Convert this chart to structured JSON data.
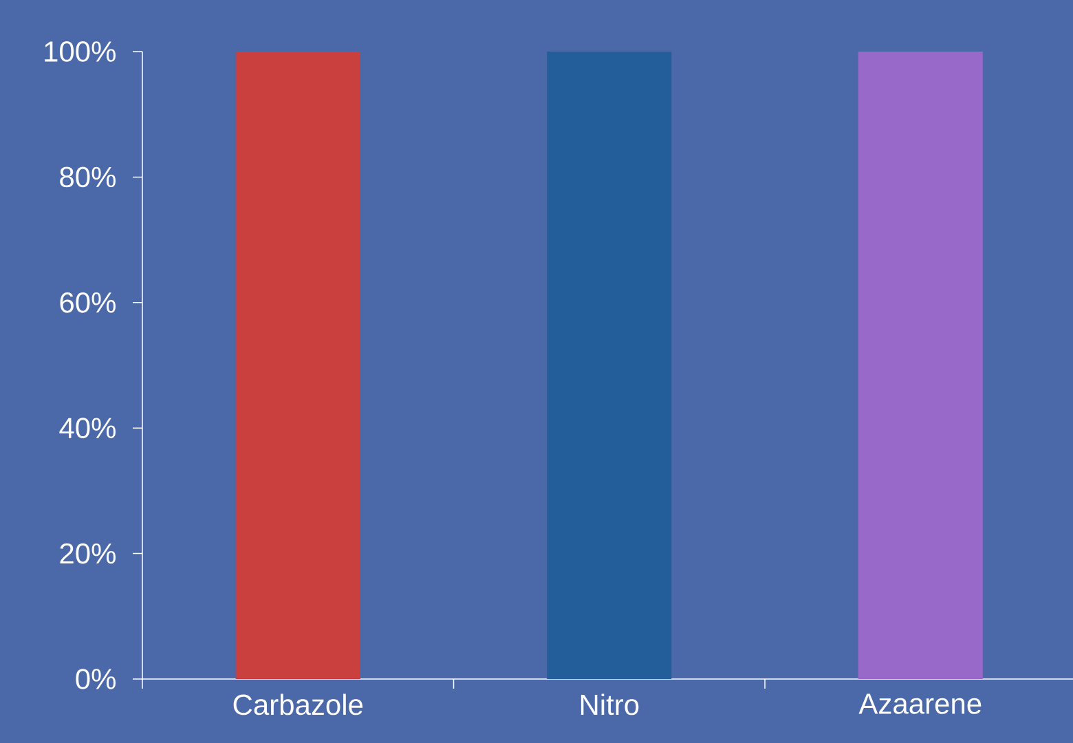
{
  "chart_data": {
    "type": "bar",
    "categories": [
      "Carbazole",
      "Nitro",
      "Azaarene"
    ],
    "values": [
      100,
      100,
      100
    ],
    "colors": [
      "#c9403e",
      "#235d9a",
      "#9869c8"
    ],
    "ylim": [
      0,
      100
    ],
    "yticks": [
      {
        "value": 0,
        "label": "0%"
      },
      {
        "value": 20,
        "label": "20%"
      },
      {
        "value": 40,
        "label": "40%"
      },
      {
        "value": 60,
        "label": "60%"
      },
      {
        "value": 80,
        "label": "80%"
      },
      {
        "value": 100,
        "label": "100%"
      }
    ]
  }
}
